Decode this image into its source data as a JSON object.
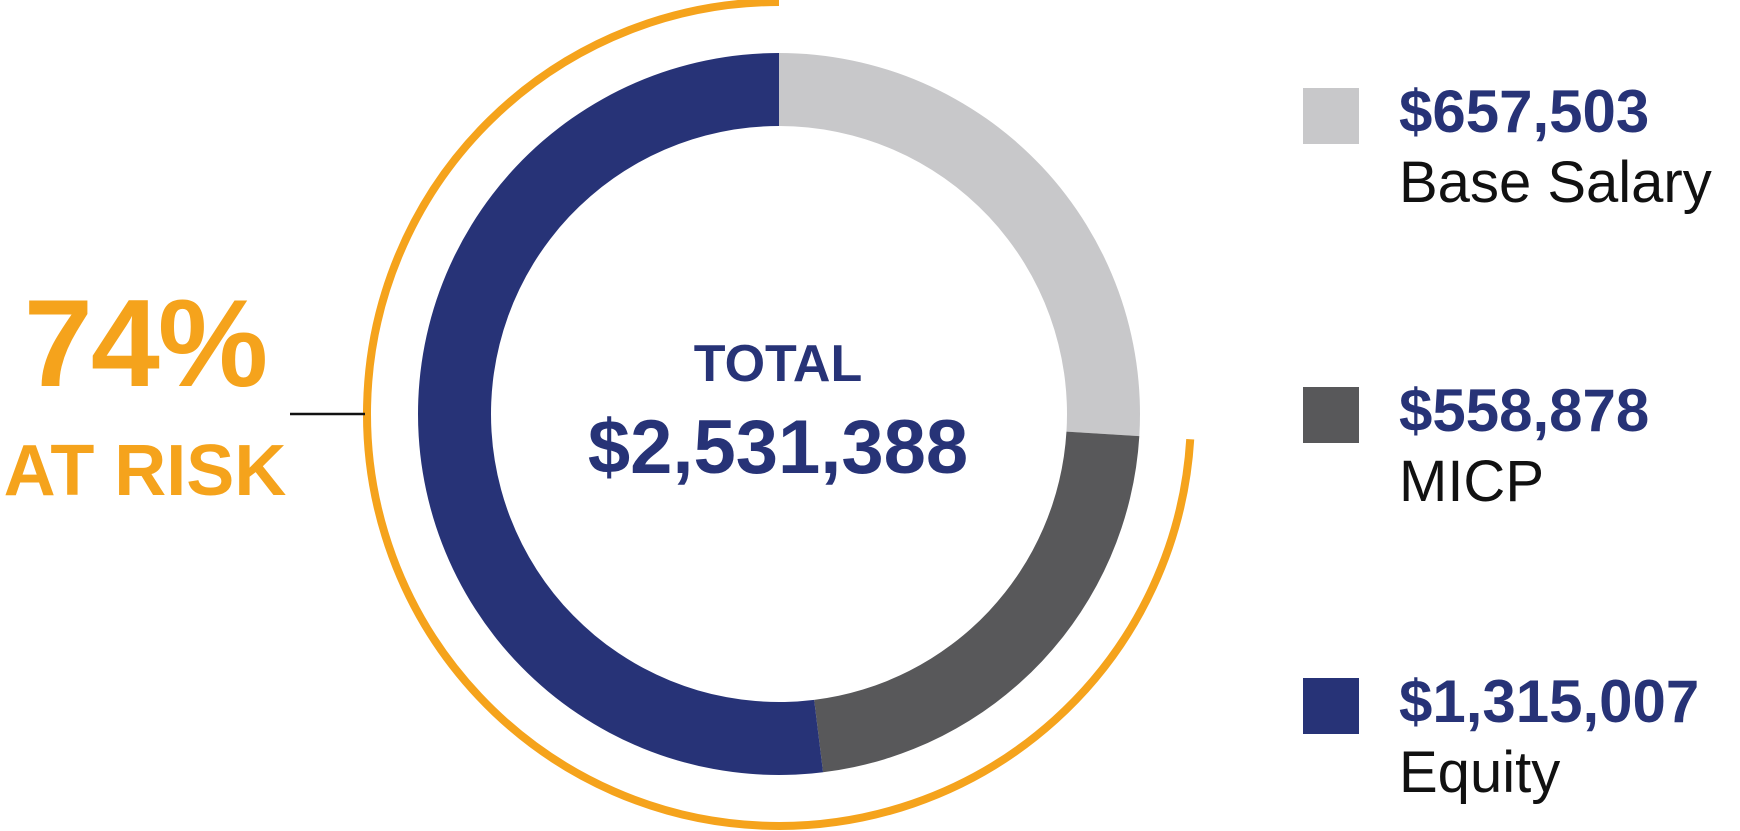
{
  "chart_data": {
    "type": "pie",
    "center_title": "TOTAL",
    "center_value": "$2,531,388",
    "total": 2531388,
    "categories": [
      "Base Salary",
      "MICP",
      "Equity"
    ],
    "values": [
      657503,
      558878,
      1315007
    ],
    "value_labels": [
      "$657,503",
      "$558,878",
      "$1,315,007"
    ],
    "colors": [
      "#c8c8ca",
      "#58585a",
      "#273377"
    ],
    "legend_position": "right",
    "at_risk": {
      "percent_label": "74%",
      "label": "AT RISK",
      "share": 0.74,
      "color": "#f5a31c"
    }
  }
}
